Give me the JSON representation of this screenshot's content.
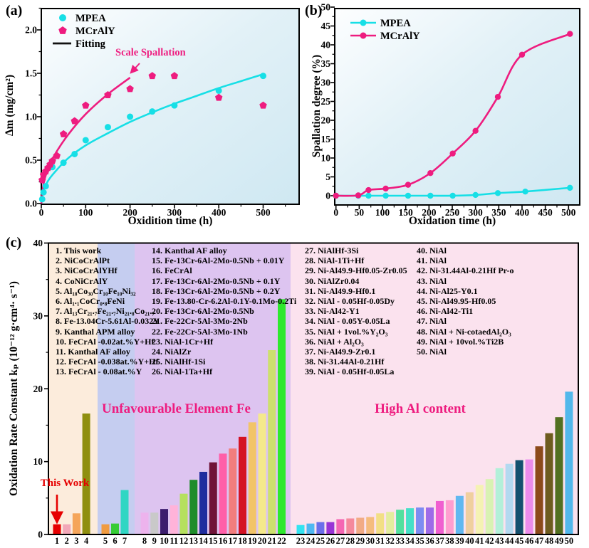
{
  "figure": {
    "panel_a_label": "(a)",
    "panel_b_label": "(b)",
    "panel_c_label": "(c)"
  },
  "colors": {
    "cyan": "#17dfe6",
    "pink": "#ee1c7f",
    "red": "#e60000",
    "black": "#111111",
    "region_cream": "#fcecdc",
    "region_blue": "#c5cdf0",
    "region_purple": "#ddc4f0",
    "region_pink": "#fbe2ee"
  },
  "chart_data": [
    {
      "panel": "a",
      "type": "scatter",
      "xlabel": "Oxidition time (h)",
      "ylabel": "Δm (mg/cm²)",
      "xlim": [
        0,
        580
      ],
      "ylim": [
        0,
        2.25
      ],
      "x_ticks": [
        0,
        100,
        200,
        300,
        400,
        500
      ],
      "x_tick_labels": [
        "0",
        "100",
        "200",
        "300",
        "400",
        "500"
      ],
      "y_ticks": [
        0,
        0.5,
        1,
        1.5,
        2
      ],
      "y_tick_labels": [
        "0.0",
        "0.5",
        "1.0",
        "1.5",
        "2.0"
      ],
      "annotation": "Scale Spallation",
      "legend": [
        {
          "label": "MPEA",
          "marker": "circle",
          "color": "#17dfe6"
        },
        {
          "label": "MCrAlY",
          "marker": "pentagon",
          "color": "#ee1c7f"
        },
        {
          "label": "Fitting",
          "marker": "line",
          "color": "#111111"
        }
      ],
      "series": [
        {
          "name": "MPEA",
          "color": "#17dfe6",
          "marker": "circle",
          "points": [
            [
              2,
              0.05
            ],
            [
              5,
              0.13
            ],
            [
              10,
              0.2
            ],
            [
              25,
              0.42
            ],
            [
              50,
              0.47
            ],
            [
              75,
              0.57
            ],
            [
              100,
              0.73
            ],
            [
              150,
              0.88
            ],
            [
              200,
              1.0
            ],
            [
              250,
              1.06
            ],
            [
              300,
              1.13
            ],
            [
              400,
              1.3
            ],
            [
              500,
              1.47
            ]
          ]
        },
        {
          "name": "MCrAlY",
          "color": "#ee1c7f",
          "marker": "pentagon",
          "points": [
            [
              2,
              0.27
            ],
            [
              5,
              0.33
            ],
            [
              10,
              0.37
            ],
            [
              15,
              0.41
            ],
            [
              20,
              0.45
            ],
            [
              25,
              0.49
            ],
            [
              35,
              0.55
            ],
            [
              50,
              0.8
            ],
            [
              75,
              0.95
            ],
            [
              100,
              1.13
            ],
            [
              150,
              1.25
            ],
            [
              200,
              1.32
            ],
            [
              250,
              1.47
            ],
            [
              300,
              1.47
            ],
            [
              400,
              1.22
            ],
            [
              500,
              1.13
            ]
          ]
        }
      ],
      "fits": [
        {
          "for": "MPEA",
          "color": "#17dfe6",
          "points": [
            [
              0,
              0
            ],
            [
              5,
              0.15
            ],
            [
              15,
              0.26
            ],
            [
              30,
              0.36
            ],
            [
              60,
              0.52
            ],
            [
              100,
              0.67
            ],
            [
              150,
              0.81
            ],
            [
              200,
              0.94
            ],
            [
              250,
              1.05
            ],
            [
              300,
              1.15
            ],
            [
              350,
              1.24
            ],
            [
              400,
              1.33
            ],
            [
              450,
              1.41
            ],
            [
              500,
              1.49
            ]
          ]
        },
        {
          "for": "MCrAlY",
          "color": "#ee1c7f",
          "points": [
            [
              0,
              0
            ],
            [
              5,
              0.23
            ],
            [
              15,
              0.4
            ],
            [
              30,
              0.56
            ],
            [
              60,
              0.79
            ],
            [
              100,
              1.03
            ],
            [
              150,
              1.26
            ],
            [
              200,
              1.45
            ]
          ]
        }
      ]
    },
    {
      "panel": "b",
      "type": "line",
      "xlabel": "Oxidation time (h)",
      "ylabel": "Spallation degree (%)",
      "xlim": [
        0,
        525
      ],
      "ylim": [
        -2.3,
        50
      ],
      "x_ticks": [
        0,
        50,
        100,
        150,
        200,
        250,
        300,
        350,
        400,
        450,
        500
      ],
      "x_tick_labels": [
        "0",
        "50",
        "100",
        "150",
        "200",
        "250",
        "300",
        "350",
        "400",
        "450",
        "500"
      ],
      "y_ticks": [
        0,
        5,
        10,
        15,
        20,
        25,
        30,
        35,
        40,
        45,
        50
      ],
      "y_tick_labels": [
        "0",
        "5",
        "10",
        "15",
        "20",
        "25",
        "30",
        "35",
        "40",
        "45",
        "50"
      ],
      "legend": [
        {
          "label": "MPEA",
          "marker": "line-circle",
          "color": "#17dfe6"
        },
        {
          "label": "MCrAlY",
          "marker": "line-circle",
          "color": "#ee1c7f"
        }
      ],
      "series": [
        {
          "name": "MPEA",
          "color": "#17dfe6",
          "marker": "circle",
          "points": [
            [
              0,
              0
            ],
            [
              48,
              0
            ],
            [
              70,
              0
            ],
            [
              107,
              0
            ],
            [
              155,
              0
            ],
            [
              203,
              0
            ],
            [
              251,
              0
            ],
            [
              300,
              0.2
            ],
            [
              348,
              0.7
            ],
            [
              407,
              1.1
            ],
            [
              503,
              2.1
            ]
          ]
        },
        {
          "name": "MCrAlY",
          "color": "#ee1c7f",
          "marker": "circle",
          "points": [
            [
              0,
              0
            ],
            [
              48,
              0.1
            ],
            [
              70,
              1.5
            ],
            [
              107,
              1.9
            ],
            [
              155,
              2.9
            ],
            [
              203,
              6.0
            ],
            [
              251,
              11.2
            ],
            [
              300,
              17.2
            ],
            [
              348,
              26.2
            ],
            [
              400,
              37.4
            ],
            [
              503,
              42.9
            ]
          ]
        }
      ]
    },
    {
      "panel": "c",
      "type": "bar",
      "ylabel": "Oxidation Rate Constant kₚ (10⁻¹² g·cm⁴· s⁻¹)",
      "ylim": [
        0,
        40
      ],
      "y_ticks": [
        0,
        10,
        20,
        30,
        40
      ],
      "y_tick_labels": [
        "0",
        "10",
        "20",
        "30",
        "40"
      ],
      "this_work_label": "This Work",
      "region_titles": [
        "Unfavourable Element Fe",
        "High Al content"
      ],
      "regions": [
        {
          "from": 1,
          "to": 4,
          "color": "#fcecdc"
        },
        {
          "from": 5,
          "to": 7,
          "color": "#c5cdf0"
        },
        {
          "from": 8,
          "to": 22,
          "color": "#ddc4f0"
        },
        {
          "from": 23,
          "to": 50,
          "color": "#fbe2ee"
        }
      ],
      "categories": [
        "1",
        "2",
        "3",
        "4",
        "5",
        "6",
        "7",
        "8",
        "9",
        "10",
        "11",
        "12",
        "13",
        "14",
        "15",
        "16",
        "17",
        "18",
        "19",
        "20",
        "21",
        "22",
        "23",
        "24",
        "25",
        "26",
        "27",
        "28",
        "29",
        "30",
        "31",
        "32",
        "33",
        "34",
        "35",
        "36",
        "37",
        "38",
        "39",
        "40",
        "41",
        "42",
        "43",
        "44",
        "45",
        "46",
        "47",
        "48",
        "49",
        "50"
      ],
      "values": [
        1.4,
        1.4,
        2.9,
        16.6,
        1.4,
        1.5,
        6.1,
        3.0,
        3.0,
        3.5,
        4.0,
        5.6,
        7.5,
        8.6,
        9.9,
        11.1,
        11.8,
        13.4,
        15.4,
        16.6,
        25.3,
        32.3,
        1.3,
        1.5,
        1.7,
        1.7,
        2.1,
        2.2,
        2.3,
        2.4,
        2.9,
        3.1,
        3.4,
        3.6,
        3.7,
        3.7,
        4.6,
        4.7,
        5.3,
        5.8,
        6.8,
        7.6,
        9.1,
        9.7,
        10.2,
        10.3,
        12.1,
        13.9,
        16.1,
        19.6
      ],
      "bar_colors": [
        "#e60000",
        "#f2a7b8",
        "#f5a55a",
        "#8f8f10",
        "#f09b40",
        "#35cc35",
        "#2fd6c3",
        "#edb3ed",
        "#c9c9c9",
        "#3b1d6e",
        "#ffb3d9",
        "#b5e05e",
        "#1e8c2a",
        "#1f2d9e",
        "#701438",
        "#ff5fa8",
        "#f27d7d",
        "#d41224",
        "#f2c468",
        "#f5e98c",
        "#cde06e",
        "#2ee82e",
        "#33e3f0",
        "#4fb8f2",
        "#6b6eeb",
        "#9933d6",
        "#f566b3",
        "#f5899c",
        "#f2ab85",
        "#f5bc7d",
        "#f2df85",
        "#e3ed9e",
        "#52e09e",
        "#45e0c7",
        "#7d8cf2",
        "#9e6be8",
        "#f05fd0",
        "#ff9ecf",
        "#61b8f0",
        "#f0cf9e",
        "#f5f2b3",
        "#d9f2b3",
        "#b3f0d9",
        "#b3d9f0",
        "#14506e",
        "#eb8ceb",
        "#8c4a1a",
        "#6e5c1f",
        "#527021",
        "#52b8eb"
      ],
      "alloys": [
        "This work",
        "NiCoCrAlPt",
        "NiCoCrAlYHf",
        "CoNiCrAlY",
        "Al₁₈Co₃₀Cr₁₀Fe₁₀Ni₃₂",
        "Al₁.₁CoCr₀.₈FeNi",
        "Al₁₃Cr₂₁.₇Fe₂₁.₇Ni₂₁.₈Co₂₁.₇",
        "Fe-13.04Cr-5.61Al-0.032Y",
        "Kanthal APM alloy",
        "FeCrAl -0.02at.%Y+Hf",
        "Kanthal AF alloy",
        "FeCrAl -0.038at.%Y+Hf",
        "FeCrAl - 0.08at.%Y",
        "Kanthal AF alloy",
        "Fe-13Cr-6Al-2Mo-0.5Nb + 0.01Y",
        "FeCrAl",
        "Fe-13Cr-6Al-2Mo-0.5Nb + 0.1Y",
        "Fe-13Cr-6Al-2Mo-0.5Nb + 0.2Y",
        "Fe-13.80-Cr-6.2Al-0.1Y-0.1Mo-0.2Ti",
        "Fe-13Cr-6Al-2Mo-0.5Nb",
        "Fe-22Cr-5Al-3Mo-2Nb",
        "Fe-22Cr-5Al-3Mo-1Nb",
        "NiAl-1Cr+Hf",
        "NiAlZr",
        "NiAlHf-1Si",
        "NiAl-1Ta+Hf",
        "NiAlHf-3Si",
        "NiAl-1Ti+Hf",
        "Ni-Al49.9-Hf0.05-Zr0.05",
        "NiAlZr0.04",
        "Ni-Al49.9-Hf0.1",
        "NiAl - 0.05Hf-0.05Dy",
        "Ni-Al42-Y1",
        "NiAl - 0.05Y-0.05La",
        "NiAl + 1vol.%Y₂O₃",
        "NiAl + Al₂O₃",
        "Ni-Al49.9-Zr0.1",
        "Ni-31.44Al-0.21Hf",
        "NiAl - 0.05Hf-0.05La",
        "NiAl",
        "NiAl",
        "Ni-31.44Al-0.21Hf  Pr-o",
        "NiAl",
        "Ni-Al25-Y0.1",
        "Ni-Al49.95-Hf0.05",
        "Ni-Al42-Ti1",
        "NiAl",
        "NiAl + Ni-cotaedAl₂O₃",
        "NiAl + 10vol.%Ti2B",
        "NiAl"
      ]
    }
  ]
}
